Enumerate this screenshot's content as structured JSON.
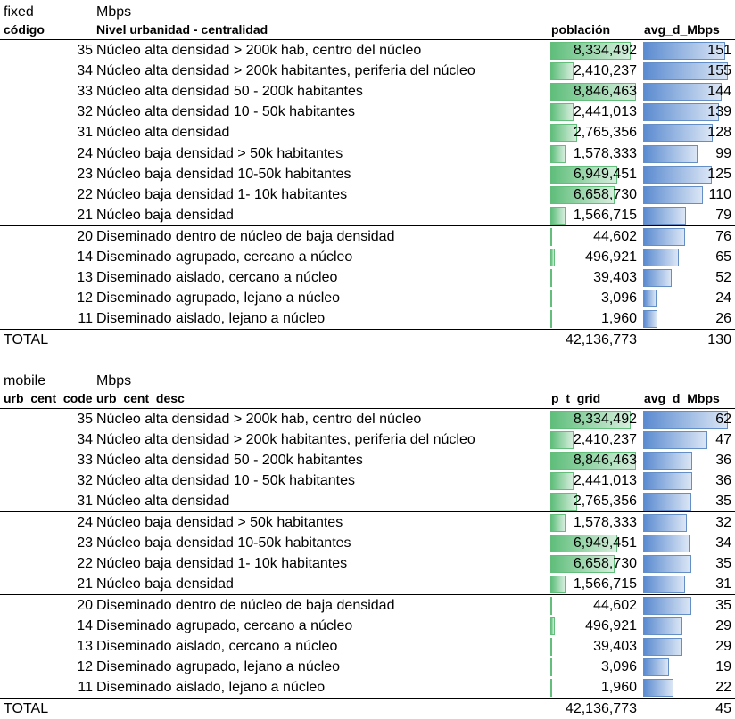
{
  "tables": [
    {
      "id": "fixed",
      "top_left": "fixed",
      "top_right": "Mbps",
      "headers": {
        "code": "código",
        "desc": "Nivel urbanidad - centralidad",
        "pop": "población",
        "avg": "avg_d_Mbps"
      },
      "max_pop": 8846463,
      "max_avg": 160,
      "rows": [
        {
          "code": "35",
          "desc": "Núcleo alta densidad > 200k hab, centro del núcleo",
          "pop": 8334492,
          "pop_text": "8,334,492",
          "avg": 151,
          "avg_text": "151"
        },
        {
          "code": "34",
          "desc": "Núcleo alta densidad > 200k habitantes, periferia del núcleo",
          "pop": 2410237,
          "pop_text": "2,410,237",
          "avg": 155,
          "avg_text": "155"
        },
        {
          "code": "33",
          "desc": "Núcleo alta densidad 50 - 200k habitantes",
          "pop": 8846463,
          "pop_text": "8,846,463",
          "avg": 144,
          "avg_text": "144"
        },
        {
          "code": "32",
          "desc": "Núcleo alta densidad 10 - 50k habitantes",
          "pop": 2441013,
          "pop_text": "2,441,013",
          "avg": 139,
          "avg_text": "139"
        },
        {
          "code": "31",
          "desc": "Núcleo alta densidad",
          "pop": 2765356,
          "pop_text": "2,765,356",
          "avg": 128,
          "avg_text": "128",
          "group_end": true
        },
        {
          "code": "24",
          "desc": "Núcleo baja densidad > 50k habitantes",
          "pop": 1578333,
          "pop_text": "1,578,333",
          "avg": 99,
          "avg_text": "99"
        },
        {
          "code": "23",
          "desc": "Núcleo baja densidad 10-50k habitantes",
          "pop": 6949451,
          "pop_text": "6,949,451",
          "avg": 125,
          "avg_text": "125"
        },
        {
          "code": "22",
          "desc": "Núcleo baja densidad 1- 10k habitantes",
          "pop": 6658730,
          "pop_text": "6,658,730",
          "avg": 110,
          "avg_text": "110"
        },
        {
          "code": "21",
          "desc": "Núcleo baja densidad",
          "pop": 1566715,
          "pop_text": "1,566,715",
          "avg": 79,
          "avg_text": "79",
          "group_end": true
        },
        {
          "code": "20",
          "desc": "Diseminado dentro de núcleo de baja densidad",
          "pop": 44602,
          "pop_text": "44,602",
          "avg": 76,
          "avg_text": "76"
        },
        {
          "code": "14",
          "desc": "Diseminado agrupado, cercano a núcleo",
          "pop": 496921,
          "pop_text": "496,921",
          "avg": 65,
          "avg_text": "65"
        },
        {
          "code": "13",
          "desc": "Diseminado aislado, cercano a núcleo",
          "pop": 39403,
          "pop_text": "39,403",
          "avg": 52,
          "avg_text": "52"
        },
        {
          "code": "12",
          "desc": "Diseminado agrupado, lejano a núcleo",
          "pop": 3096,
          "pop_text": "3,096",
          "avg": 24,
          "avg_text": "24"
        },
        {
          "code": "11",
          "desc": "Diseminado aislado, lejano a núcleo",
          "pop": 1960,
          "pop_text": "1,960",
          "avg": 26,
          "avg_text": "26"
        }
      ],
      "total": {
        "label": "TOTAL",
        "pop_text": "42,136,773",
        "avg_text": "130"
      }
    },
    {
      "id": "mobile",
      "top_left": "mobile",
      "top_right": "Mbps",
      "headers": {
        "code": "urb_cent_code",
        "desc": "urb_cent_desc",
        "pop": "p_t_grid",
        "avg": "avg_d_Mbps"
      },
      "max_pop": 8846463,
      "max_avg": 64,
      "rows": [
        {
          "code": "35",
          "desc": "Núcleo alta densidad > 200k hab, centro del núcleo",
          "pop": 8334492,
          "pop_text": "8,334,492",
          "avg": 62,
          "avg_text": "62"
        },
        {
          "code": "34",
          "desc": "Núcleo alta densidad > 200k habitantes, periferia del núcleo",
          "pop": 2410237,
          "pop_text": "2,410,237",
          "avg": 47,
          "avg_text": "47"
        },
        {
          "code": "33",
          "desc": "Núcleo alta densidad 50 - 200k habitantes",
          "pop": 8846463,
          "pop_text": "8,846,463",
          "avg": 36,
          "avg_text": "36"
        },
        {
          "code": "32",
          "desc": "Núcleo alta densidad 10 - 50k habitantes",
          "pop": 2441013,
          "pop_text": "2,441,013",
          "avg": 36,
          "avg_text": "36"
        },
        {
          "code": "31",
          "desc": "Núcleo alta densidad",
          "pop": 2765356,
          "pop_text": "2,765,356",
          "avg": 35,
          "avg_text": "35",
          "group_end": true
        },
        {
          "code": "24",
          "desc": "Núcleo baja densidad > 50k habitantes",
          "pop": 1578333,
          "pop_text": "1,578,333",
          "avg": 32,
          "avg_text": "32"
        },
        {
          "code": "23",
          "desc": "Núcleo baja densidad 10-50k habitantes",
          "pop": 6949451,
          "pop_text": "6,949,451",
          "avg": 34,
          "avg_text": "34"
        },
        {
          "code": "22",
          "desc": "Núcleo baja densidad 1- 10k habitantes",
          "pop": 6658730,
          "pop_text": "6,658,730",
          "avg": 35,
          "avg_text": "35"
        },
        {
          "code": "21",
          "desc": "Núcleo baja densidad",
          "pop": 1566715,
          "pop_text": "1,566,715",
          "avg": 31,
          "avg_text": "31",
          "group_end": true
        },
        {
          "code": "20",
          "desc": "Diseminado dentro de núcleo de baja densidad",
          "pop": 44602,
          "pop_text": "44,602",
          "avg": 35,
          "avg_text": "35"
        },
        {
          "code": "14",
          "desc": "Diseminado agrupado, cercano a núcleo",
          "pop": 496921,
          "pop_text": "496,921",
          "avg": 29,
          "avg_text": "29"
        },
        {
          "code": "13",
          "desc": "Diseminado aislado, cercano a núcleo",
          "pop": 39403,
          "pop_text": "39,403",
          "avg": 29,
          "avg_text": "29"
        },
        {
          "code": "12",
          "desc": "Diseminado agrupado, lejano a núcleo",
          "pop": 3096,
          "pop_text": "3,096",
          "avg": 19,
          "avg_text": "19"
        },
        {
          "code": "11",
          "desc": "Diseminado aislado, lejano a núcleo",
          "pop": 1960,
          "pop_text": "1,960",
          "avg": 22,
          "avg_text": "22"
        }
      ],
      "total": {
        "label": "TOTAL",
        "pop_text": "42,136,773",
        "avg_text": "45"
      }
    }
  ],
  "colors": {
    "green_bar": "#63be7b",
    "blue_bar": "#638ec6",
    "rule": "#000000"
  }
}
